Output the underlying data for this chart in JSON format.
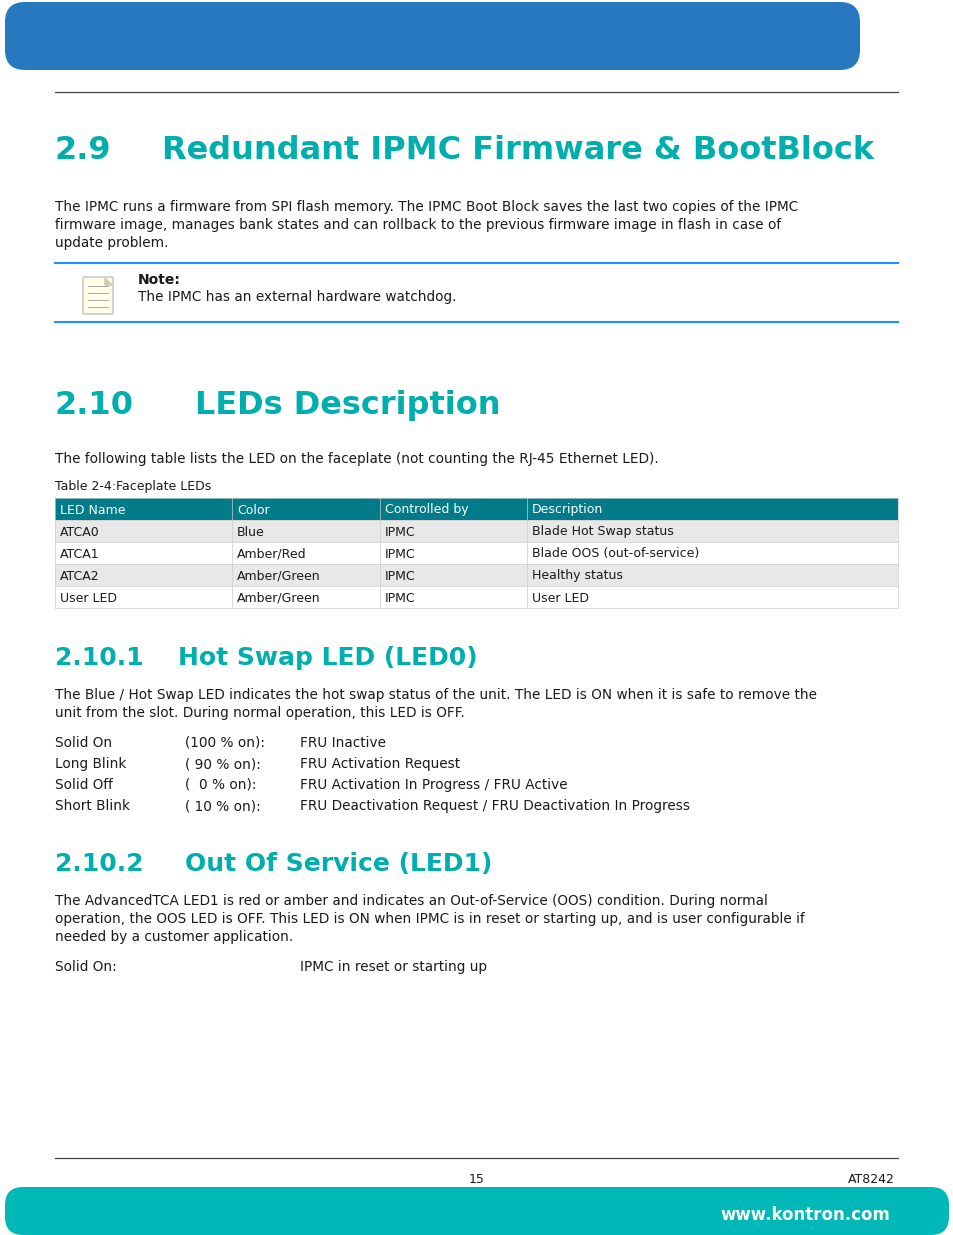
{
  "header_blue": "#2878C0",
  "teal_color": "#00AEAE",
  "footer_teal": "#00B8B8",
  "text_black": "#1a1a1a",
  "table_header_bg": "#007B8A",
  "table_header_text": "#ffffff",
  "table_row_alt": "#e8e8e8",
  "table_row_white": "#ffffff",
  "note_border": "#1E90FF",
  "page_bg": "#ffffff",
  "section1_num": "2.9",
  "section1_title": "Redundant IPMC Firmware & BootBlock",
  "section1_body1": "The IPMC runs a firmware from SPI flash memory. The IPMC Boot Block saves the last two copies of the IPMC",
  "section1_body2": "firmware image, manages bank states and can rollback to the previous firmware image in flash in case of",
  "section1_body3": "update problem.",
  "note_label": "Note:",
  "note_text": "The IPMC has an external hardware watchdog.",
  "section2_num": "2.10",
  "section2_title": "LEDs Description",
  "section2_intro": "The following table lists the LED on the faceplate (not counting the RJ-45 Ethernet LED).",
  "table_caption": "Table 2-4:Faceplate LEDs",
  "table_headers": [
    "LED Name",
    "Color",
    "Controlled by",
    "Description"
  ],
  "table_rows": [
    [
      "ATCA0",
      "Blue",
      "IPMC",
      "Blade Hot Swap status"
    ],
    [
      "ATCA1",
      "Amber/Red",
      "IPMC",
      "Blade OOS (out-of-service)"
    ],
    [
      "ATCA2",
      "Amber/Green",
      "IPMC",
      "Healthy status"
    ],
    [
      "User LED",
      "Amber/Green",
      "IPMC",
      "User LED"
    ]
  ],
  "section3_num": "2.10.1",
  "section3_title": "Hot Swap LED (LED0)",
  "section3_intro1": "The Blue / Hot Swap LED indicates the hot swap status of the unit. The LED is ON when it is safe to remove the",
  "section3_intro2": "unit from the slot. During normal operation, this LED is OFF.",
  "led0_items": [
    [
      "Solid On",
      "(100 % on):",
      "FRU Inactive"
    ],
    [
      "Long Blink",
      "( 90 % on):",
      "FRU Activation Request"
    ],
    [
      "Solid Off",
      "(  0 % on):",
      "FRU Activation In Progress / FRU Active"
    ],
    [
      "Short Blink",
      "( 10 % on):",
      "FRU Deactivation Request / FRU Deactivation In Progress"
    ]
  ],
  "section4_num": "2.10.2",
  "section4_title": "Out Of Service (LED1)",
  "section4_intro1": "The AdvancedTCA LED1 is red or amber and indicates an Out-of-Service (OOS) condition. During normal",
  "section4_intro2": "operation, the OOS LED is OFF. This LED is ON when IPMC is in reset or starting up, and is user configurable if",
  "section4_intro3": "needed by a customer application.",
  "led1_col1": "Solid On:",
  "led1_col3": "IPMC in reset or starting up",
  "footer_page": "15",
  "footer_right": "AT8242",
  "footer_website": "www.kontron.com"
}
